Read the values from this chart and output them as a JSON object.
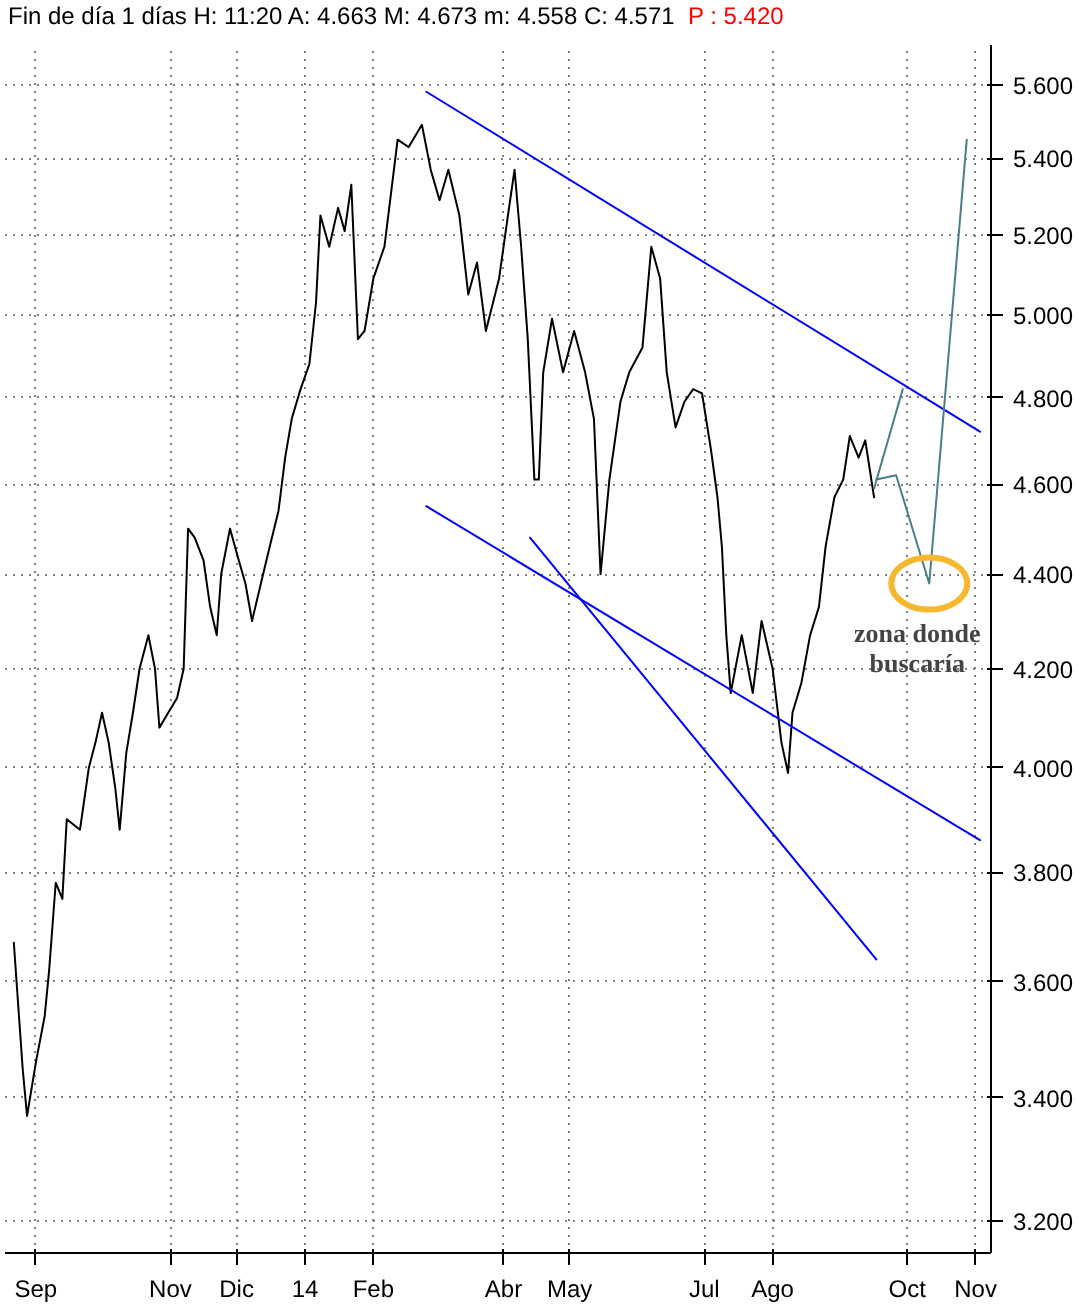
{
  "chart_data": {
    "type": "line",
    "title": "Fin de día 1 días  H: 11:20  A: 4.663  M: 4.673  m: 4.558  C: 4.571",
    "subtitle": "P : 5.420",
    "log": "y",
    "grid": true,
    "xlim": [
      "2013-08-18",
      "2014-11-08"
    ],
    "ylim": [
      3.15,
      5.71
    ],
    "xticks": [
      {
        "value": "2013-09-01",
        "label": "Sep"
      },
      {
        "value": "2013-11-01",
        "label": "Nov"
      },
      {
        "value": "2013-12-01",
        "label": "Dic"
      },
      {
        "value": "2014-01-01",
        "label": "14"
      },
      {
        "value": "2014-02-01",
        "label": "Feb"
      },
      {
        "value": "2014-04-01",
        "label": "Abr"
      },
      {
        "value": "2014-05-01",
        "label": "May"
      },
      {
        "value": "2014-07-01",
        "label": "Jul"
      },
      {
        "value": "2014-08-01",
        "label": "Ago"
      },
      {
        "value": "2014-10-01",
        "label": "Oct"
      },
      {
        "value": "2014-11-01",
        "label": "Nov"
      }
    ],
    "yticks": [
      {
        "value": 3.2,
        "label": "3.200"
      },
      {
        "value": 3.4,
        "label": "3.400"
      },
      {
        "value": 3.6,
        "label": "3.600"
      },
      {
        "value": 3.8,
        "label": "3.800"
      },
      {
        "value": 4.0,
        "label": "4.000"
      },
      {
        "value": 4.2,
        "label": "4.200"
      },
      {
        "value": 4.4,
        "label": "4.400"
      },
      {
        "value": 4.6,
        "label": "4.600"
      },
      {
        "value": 4.8,
        "label": "4.800"
      },
      {
        "value": 5.0,
        "label": "5.000"
      },
      {
        "value": 5.2,
        "label": "5.200"
      },
      {
        "value": 5.4,
        "label": "5.400"
      },
      {
        "value": 5.6,
        "label": "5.600"
      }
    ],
    "series": [
      {
        "color": "#000000",
        "x": [
          "2013-08-22",
          "2013-08-26",
          "2013-08-28",
          "2013-09-01",
          "2013-09-05",
          "2013-09-07",
          "2013-09-10",
          "2013-09-13",
          "2013-09-15",
          "2013-09-21",
          "2013-09-25",
          "2013-09-28",
          "2013-10-01",
          "2013-10-04",
          "2013-10-07",
          "2013-10-09",
          "2013-10-12",
          "2013-10-15",
          "2013-10-18",
          "2013-10-22",
          "2013-10-25",
          "2013-10-27",
          "2013-10-31",
          "2013-11-04",
          "2013-11-07",
          "2013-11-09",
          "2013-11-12",
          "2013-11-16",
          "2013-11-19",
          "2013-11-22",
          "2013-11-24",
          "2013-11-28",
          "2013-12-02",
          "2013-12-05",
          "2013-12-08",
          "2013-12-12",
          "2013-12-16",
          "2013-12-20",
          "2013-12-23",
          "2013-12-26",
          "2013-12-30",
          "2014-01-03",
          "2014-01-06",
          "2014-01-08",
          "2014-01-12",
          "2014-01-16",
          "2014-01-19",
          "2014-01-22",
          "2014-01-25",
          "2014-01-28",
          "2014-02-01",
          "2014-02-06",
          "2014-02-12",
          "2014-02-17",
          "2014-02-23",
          "2014-02-27",
          "2014-03-03",
          "2014-03-07",
          "2014-03-12",
          "2014-03-16",
          "2014-03-20",
          "2014-03-24",
          "2014-03-30",
          "2014-04-03",
          "2014-04-06",
          "2014-04-09",
          "2014-04-12",
          "2014-04-15",
          "2014-04-17",
          "2014-04-19",
          "2014-04-23",
          "2014-04-28",
          "2014-05-03",
          "2014-05-08",
          "2014-05-12",
          "2014-05-15",
          "2014-05-19",
          "2014-05-24",
          "2014-05-28",
          "2014-06-03",
          "2014-06-07",
          "2014-06-11",
          "2014-06-14",
          "2014-06-18",
          "2014-06-22",
          "2014-06-26",
          "2014-06-30",
          "2014-07-04",
          "2014-07-07",
          "2014-07-09",
          "2014-07-11",
          "2014-07-13",
          "2014-07-18",
          "2014-07-23",
          "2014-07-27",
          "2014-08-01",
          "2014-08-05",
          "2014-08-08",
          "2014-08-10",
          "2014-08-14",
          "2014-08-18",
          "2014-08-22",
          "2014-08-25",
          "2014-08-29",
          "2014-09-02",
          "2014-09-05",
          "2014-09-09",
          "2014-09-12",
          "2014-09-16"
        ],
        "values": [
          3.67,
          3.45,
          3.37,
          3.46,
          3.54,
          3.62,
          3.78,
          3.75,
          3.9,
          3.88,
          4.0,
          4.05,
          4.11,
          4.05,
          3.96,
          3.88,
          4.03,
          4.11,
          4.2,
          4.27,
          4.2,
          4.08,
          4.11,
          4.14,
          4.2,
          4.5,
          4.48,
          4.43,
          4.33,
          4.27,
          4.4,
          4.5,
          4.43,
          4.38,
          4.3,
          4.38,
          4.46,
          4.54,
          4.66,
          4.75,
          4.82,
          4.88,
          5.03,
          5.25,
          5.17,
          5.27,
          5.21,
          5.33,
          4.94,
          4.96,
          5.09,
          5.17,
          5.45,
          5.43,
          5.49,
          5.37,
          5.29,
          5.37,
          5.25,
          5.05,
          5.13,
          4.96,
          5.09,
          5.25,
          5.37,
          5.17,
          4.94,
          4.61,
          4.61,
          4.86,
          4.99,
          4.86,
          4.96,
          4.86,
          4.75,
          4.4,
          4.61,
          4.79,
          4.86,
          4.92,
          5.17,
          5.09,
          4.86,
          4.73,
          4.79,
          4.82,
          4.81,
          4.68,
          4.57,
          4.46,
          4.27,
          4.15,
          4.27,
          4.15,
          4.3,
          4.2,
          4.05,
          3.99,
          4.11,
          4.17,
          4.27,
          4.33,
          4.46,
          4.57,
          4.61,
          4.71,
          4.66,
          4.7,
          4.57
        ]
      },
      {
        "type": "line",
        "color": "#0000ff",
        "x": [
          "2014-02-25",
          "2014-11-03"
        ],
        "values": [
          5.58,
          4.72
        ]
      },
      {
        "type": "line",
        "color": "#0000ff",
        "x": [
          "2014-02-25",
          "2014-11-03"
        ],
        "values": [
          4.55,
          3.86
        ]
      },
      {
        "type": "line",
        "color": "#0000ff",
        "x": [
          "2014-04-13",
          "2014-09-17"
        ],
        "values": [
          4.48,
          3.64
        ]
      },
      {
        "type": "line",
        "color": "#4a7f86",
        "x": [
          "2014-09-16",
          "2014-09-29"
        ],
        "values": [
          4.59,
          4.82
        ]
      },
      {
        "type": "line",
        "color": "#4a7f86",
        "x": [
          "2014-09-17",
          "2014-09-26",
          "2014-10-11",
          "2014-10-28"
        ],
        "values": [
          4.61,
          4.62,
          4.38,
          5.45
        ]
      }
    ],
    "annotations": [
      {
        "text": "zona donde buscaría",
        "x": "2014-10-11",
        "y": 4.38
      }
    ]
  }
}
